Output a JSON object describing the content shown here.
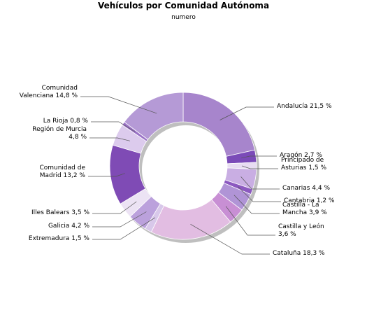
{
  "chart_data": {
    "type": "pie",
    "variant": "donut",
    "title": "Vehículos por Comunidad Autónoma",
    "subtitle": "numero",
    "unit": "%",
    "slices": [
      {
        "name": "Andalucía",
        "label": "Andalucía 21,5 %",
        "value": 21.5,
        "color": "#a785cc"
      },
      {
        "name": "Aragón",
        "label": "Aragón 2,7 %",
        "value": 2.7,
        "color": "#7b4bb8"
      },
      {
        "name": "Principado de Asturias",
        "label": "Principado de Asturias 1,5 %",
        "value": 1.5,
        "color": "#e8ddf2"
      },
      {
        "name": "Canarias",
        "label": "Canarias 4,4 %",
        "value": 4.4,
        "color": "#c9aee3"
      },
      {
        "name": "Cantabria",
        "label": "Cantabria 1,2 %",
        "value": 1.2,
        "color": "#8c59c0"
      },
      {
        "name": "Castilla - La Mancha",
        "label": "Castilla - La Mancha 3,9 %",
        "value": 3.9,
        "color": "#b094d6"
      },
      {
        "name": "Castilla y León",
        "label": "Castilla y León 3,6 %",
        "value": 3.6,
        "color": "#c88fd4"
      },
      {
        "name": "Cataluña",
        "label": "Cataluña 18,3 %",
        "value": 18.3,
        "color": "#e2bde2"
      },
      {
        "name": "Extremadura",
        "label": "Extremadura 1,5 %",
        "value": 1.5,
        "color": "#d8c8ea"
      },
      {
        "name": "Galicia",
        "label": "Galicia 4,2 %",
        "value": 4.2,
        "color": "#bba1dc"
      },
      {
        "name": "Illes Balears",
        "label": "Illes Balears 3,5 %",
        "value": 3.5,
        "color": "#ece3f4"
      },
      {
        "name": "Comunidad de Madrid",
        "label": "Comunidad de Madrid 13,2 %",
        "value": 13.2,
        "color": "#7f4bb5"
      },
      {
        "name": "Región de Murcia",
        "label": "Región de Murcia 4,8 %",
        "value": 4.8,
        "color": "#dccbed"
      },
      {
        "name": "La Rioja",
        "label": "La Rioja 0,8 %",
        "value": 0.8,
        "color": "#9a72c6"
      },
      {
        "name": "Comunidad Valenciana",
        "label": "Comunidad Valenciana 14,8 %",
        "value": 14.8,
        "color": "#b59ad6"
      }
    ],
    "legend": "none"
  },
  "labels": [
    {
      "lines": [
        "Andalucía 21,5 %"
      ]
    },
    {
      "lines": [
        "Aragón 2,7 %"
      ]
    },
    {
      "lines": [
        "Principado de",
        "Asturias 1,5 %"
      ]
    },
    {
      "lines": [
        "Canarias 4,4 %"
      ]
    },
    {
      "lines": [
        "Cantabria 1,2 %"
      ]
    },
    {
      "lines": [
        "Castilla - La",
        "Mancha 3,9 %"
      ]
    },
    {
      "lines": [
        "Castilla y León",
        "3,6 %"
      ]
    },
    {
      "lines": [
        "Cataluña 18,3 %"
      ]
    },
    {
      "lines": [
        "Extremadura 1,5 %"
      ]
    },
    {
      "lines": [
        "Galicia 4,2 %"
      ]
    },
    {
      "lines": [
        "Illes Balears 3,5 %"
      ]
    },
    {
      "lines": [
        "Comunidad de",
        "Madrid 13,2 %"
      ]
    },
    {
      "lines": [
        "Región de Murcia",
        "4,8 %"
      ]
    },
    {
      "lines": [
        "La Rioja 0,8 %"
      ]
    },
    {
      "lines": [
        "Comunidad",
        "Valenciana 14,8 %"
      ]
    }
  ]
}
